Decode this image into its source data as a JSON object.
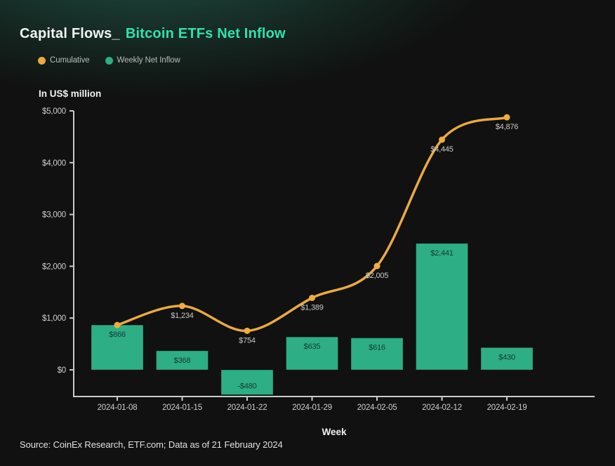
{
  "title": {
    "prefix": "Capital Flows_",
    "highlight": "Bitcoin ETFs Net Inflow"
  },
  "legend": [
    {
      "label": "Cumulative",
      "color": "#EBA93E"
    },
    {
      "label": "Weekly Net Inflow",
      "color": "#2EAE85"
    }
  ],
  "source": "Source: CoinEx Research, ETF.com; Data as of 21 February 2024",
  "colors": {
    "background": "#101110",
    "glow": "rgba(41,126,103,0.58)",
    "title_text": "#F2F4F3",
    "title_highlight": "#30E2AB",
    "axis": "#C9CCCA",
    "tick_text": "#CDCFCD",
    "bar": "#2EAE85",
    "bar_label": "#16392F",
    "line": "#EBA93E",
    "marker": "#F1AC40",
    "line_label": "#C8CAC8",
    "legend_text": "#B7BCB9"
  },
  "chart_data": {
    "type": "bar+line combo",
    "categories": [
      "2024-01-08",
      "2024-01-15",
      "2024-01-22",
      "2024-01-29",
      "2024-02-05",
      "2024-02-12",
      "2024-02-19"
    ],
    "series": [
      {
        "name": "Weekly Net Inflow",
        "type": "bar",
        "color": "#2EAE85",
        "values": [
          866,
          368,
          -480,
          635,
          616,
          2441,
          430
        ],
        "labels": [
          "$866",
          "$368",
          "-$480",
          "$635",
          "$616",
          "$2,441",
          "$430"
        ]
      },
      {
        "name": "Cumulative",
        "type": "line",
        "color": "#EBA93E",
        "values": [
          866,
          1234,
          754,
          1389,
          2005,
          4445,
          4876
        ],
        "labels": [
          "",
          "$1,234",
          "$754",
          "$1,389",
          "$2,005",
          "$4,445",
          "$4,876"
        ]
      }
    ],
    "xlabel": "Week",
    "ylabel": "In US$ million",
    "yticks": [
      0,
      1000,
      2000,
      3000,
      4000,
      5000
    ],
    "ytick_labels": [
      "$0",
      "$1,000",
      "$2,000",
      "$3,000",
      "$4,000",
      "$5,000"
    ],
    "ymax": 5000,
    "ymin_visible": -600,
    "grid": false,
    "legend_position": "top-left"
  }
}
